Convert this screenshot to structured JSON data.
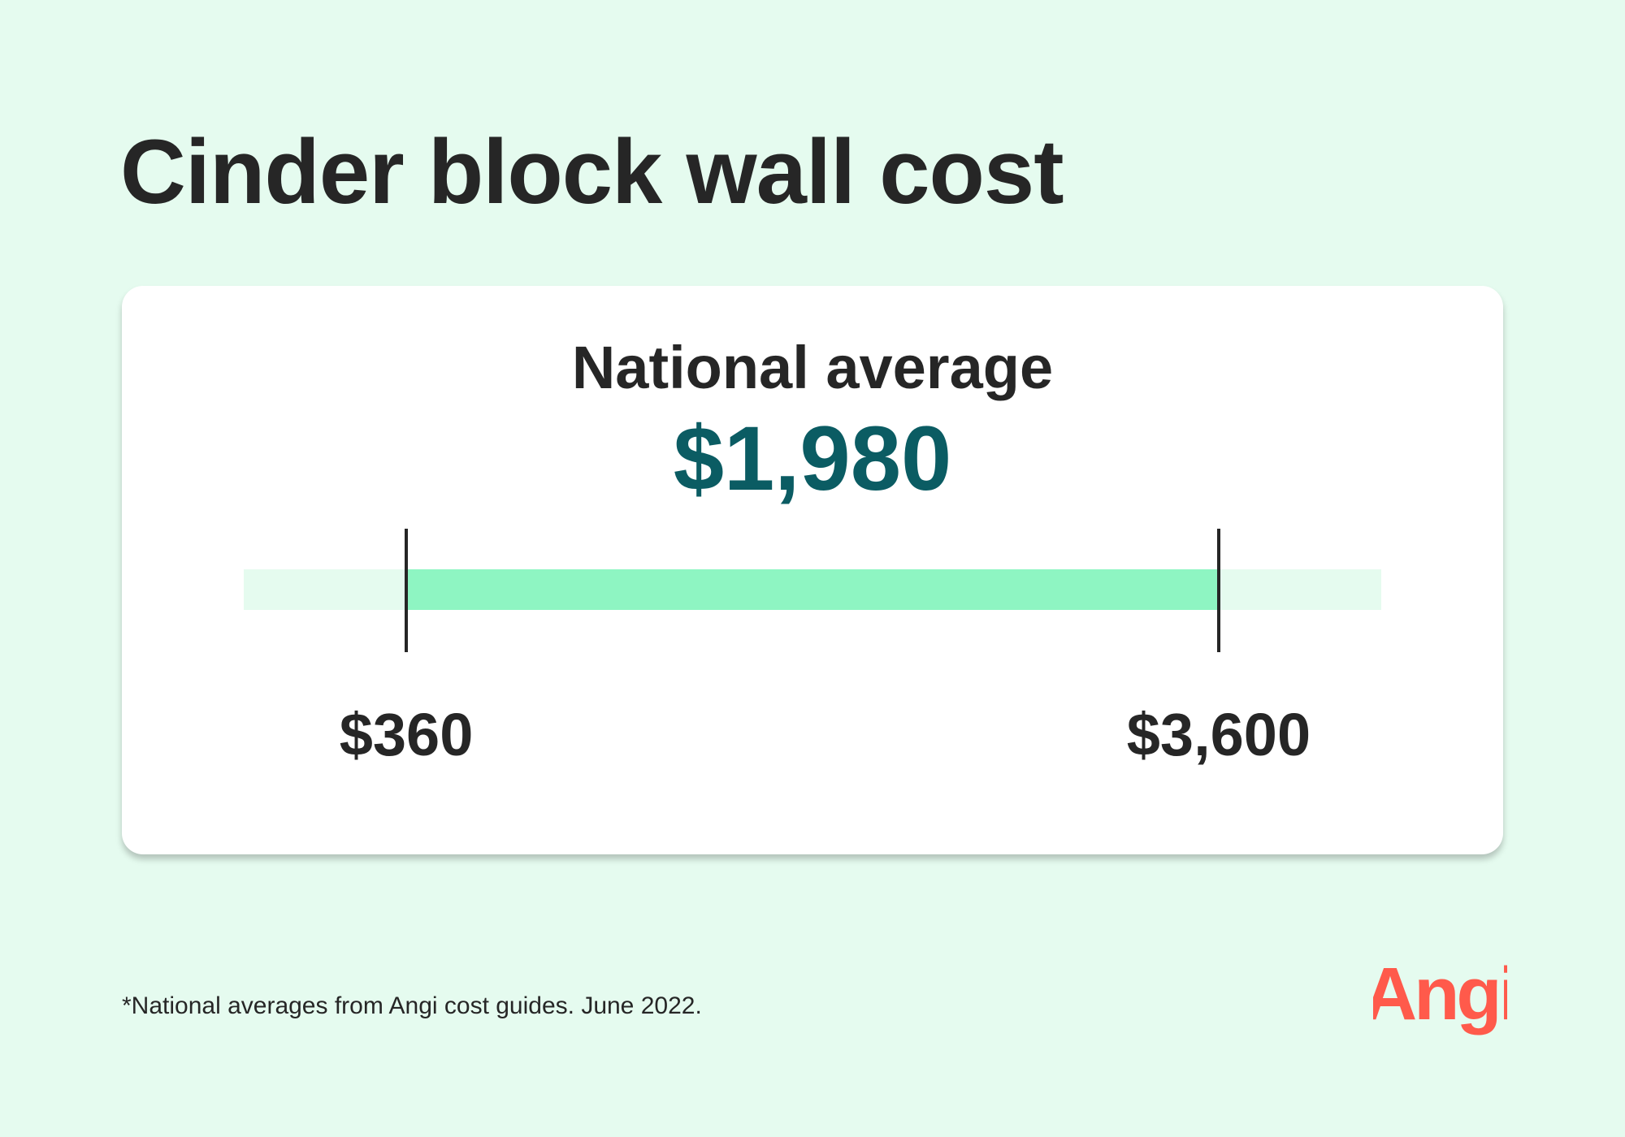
{
  "title": "Cinder block wall cost",
  "card": {
    "label": "National average",
    "average_text": "$1,980",
    "low_text": "$360",
    "high_text": "$3,600"
  },
  "range": {
    "low": 360,
    "high": 3600,
    "average": 1980,
    "fill_start_fraction": 0.1429,
    "fill_end_fraction": 0.8571
  },
  "footnote": "*National averages from Angi cost guides. June 2022.",
  "logo": {
    "text": "Angi"
  },
  "colors": {
    "background": "#e5fbef",
    "accent": "#0b5c63",
    "fill": "#8ef5c2",
    "track": "#e5fbef",
    "logo": "#ff5a4b"
  }
}
